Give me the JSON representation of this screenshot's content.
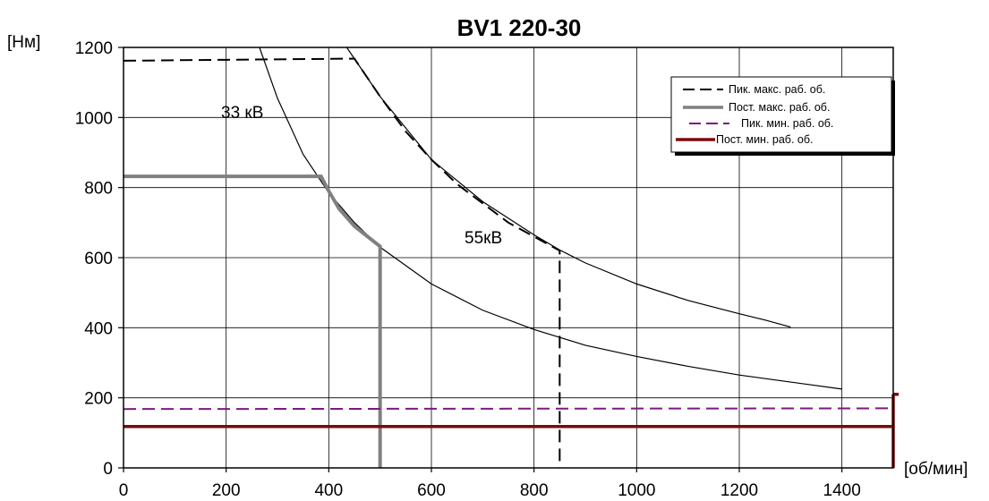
{
  "chart_data": {
    "type": "line",
    "title": "BV1  220-30",
    "xlabel": "[об/мин]",
    "ylabel": "[Нм]",
    "xlim": [
      0,
      1500
    ],
    "ylim": [
      0,
      1200
    ],
    "x_ticks": [
      0,
      200,
      400,
      600,
      800,
      1000,
      1200,
      1400
    ],
    "y_ticks": [
      0,
      200,
      400,
      600,
      800,
      1000,
      1200
    ],
    "grid": true,
    "legend_position": "top-right",
    "colors": {
      "curve": "#000000",
      "peak_max": "#000000",
      "cont_max": "#808080",
      "peak_min": "#7a1a80",
      "cont_min": "#7a0b0b"
    },
    "series": [
      {
        "name": "Пик.  макс. раб. об.",
        "style": "dashed",
        "color": "#000000",
        "x": [
          0,
          450,
          500,
          550,
          600,
          650,
          700,
          750,
          800,
          850,
          850
        ],
        "y": [
          1162,
          1168,
          1060,
          960,
          880,
          810,
          755,
          700,
          660,
          620,
          0
        ]
      },
      {
        "name": "Пост. макс. раб. об.",
        "style": "solid",
        "color": "#808080",
        "x": [
          0,
          385,
          400,
          420,
          450,
          500,
          500
        ],
        "y": [
          832,
          832,
          790,
          740,
          690,
          632,
          0
        ]
      },
      {
        "name": "Пик.  мин. раб. об.",
        "style": "dashed",
        "color": "#7a1a80",
        "x": [
          0,
          1500
        ],
        "y": [
          168,
          170
        ]
      },
      {
        "name": "Пост. мин. раб. об.",
        "style": "solid",
        "color": "#7a0b0b",
        "x": [
          0,
          1500,
          1500,
          1500
        ],
        "y": [
          118,
          118,
          210,
          0
        ]
      }
    ],
    "curves": [
      {
        "label": "33 кВ",
        "x": [
          265,
          300,
          350,
          400,
          450,
          500,
          600,
          700,
          800,
          900,
          1000,
          1100,
          1200,
          1300,
          1400
        ],
        "y": [
          1200,
          1055,
          895,
          785,
          700,
          630,
          525,
          450,
          395,
          350,
          318,
          290,
          265,
          245,
          225
        ]
      },
      {
        "label": "55кВ",
        "x": [
          435,
          500,
          600,
          700,
          800,
          850,
          900,
          1000,
          1100,
          1200,
          1250,
          1300
        ],
        "y": [
          1200,
          1060,
          880,
          760,
          665,
          622,
          585,
          525,
          478,
          440,
          422,
          402
        ]
      }
    ]
  }
}
